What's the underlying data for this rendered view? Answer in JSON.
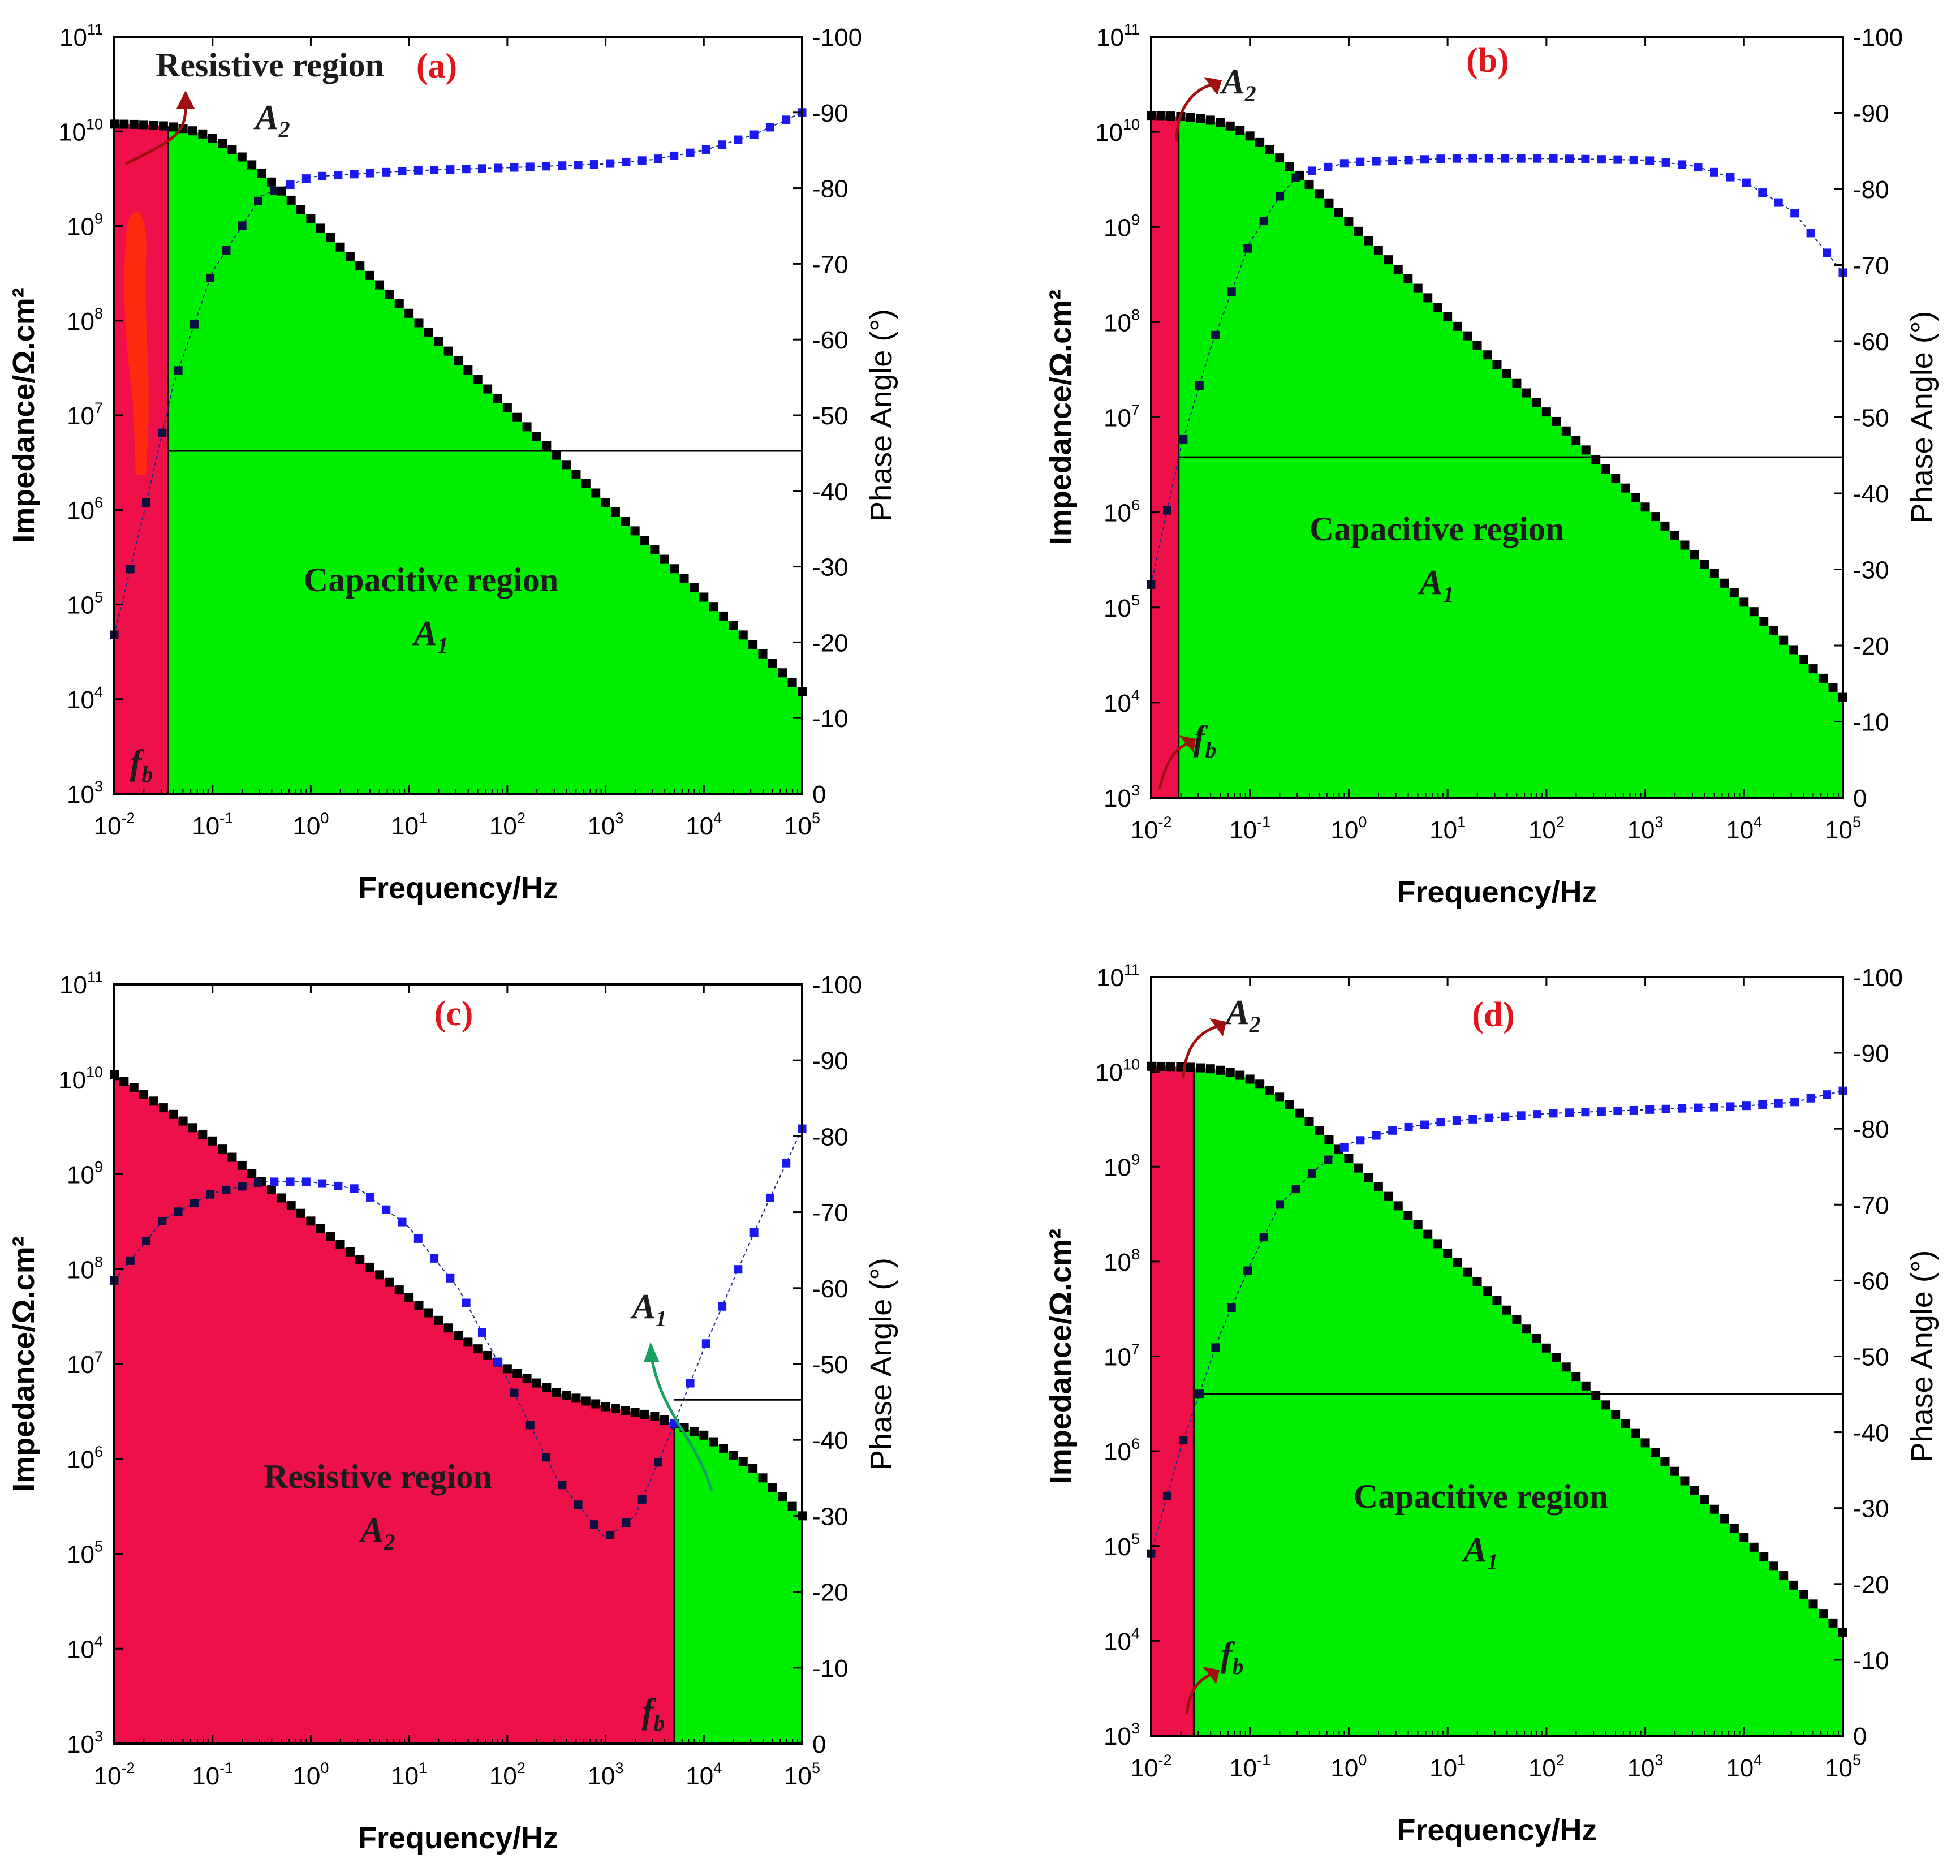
{
  "figure": {
    "x_axis_label": "Frequency/Hz",
    "y_axis_label": "Impedance/Ω.cm²",
    "y2_axis_label": "Phase Angle (°)"
  },
  "colors": {
    "capacitive": "#00ee00",
    "resistive": "#ee1048",
    "impedance_marker": "#000000",
    "phase_marker": "#1a1aee",
    "panel_label": "#e0161c",
    "arrow_red": "#a01010",
    "arrow_green": "#18a060"
  },
  "chart_data": [
    {
      "type": "scatter",
      "title": "(a)",
      "xlabel": "Frequency/Hz",
      "ylabel": "Impedance/Ω.cm²",
      "y2label": "Phase Angle (°)",
      "xscale": "log",
      "xlim": [
        0.01,
        100000
      ],
      "yscale": "log",
      "ylim": [
        1000,
        100000000000
      ],
      "y2lim": [
        0,
        -100
      ],
      "x_ticks": [
        "10",
        "10",
        "10",
        "10",
        "10",
        "10",
        "10",
        "10"
      ],
      "x_tick_exps": [
        "-2",
        "-1",
        "0",
        "1",
        "2",
        "3",
        "4",
        "5"
      ],
      "y_ticks": [
        "10",
        "10",
        "10",
        "10",
        "10",
        "10",
        "10",
        "10",
        "10"
      ],
      "y_tick_exps": [
        "3",
        "4",
        "5",
        "6",
        "7",
        "8",
        "9",
        "10",
        "11"
      ],
      "y2_ticks": [
        "0",
        "-10",
        "-20",
        "-30",
        "-40",
        "-50",
        "-60",
        "-70",
        "-80",
        "-90",
        "-100"
      ],
      "y2_tick_values": [
        0,
        -10,
        -20,
        -30,
        -40,
        -50,
        -60,
        -70,
        -80,
        -90,
        -100
      ],
      "fb_hz": 0.035,
      "horizontal_line_ohm": 4200000,
      "regions": [
        {
          "name": "Resistive region",
          "symbol": "A",
          "sub": "2",
          "fill": "resistive"
        },
        {
          "name": "Capacitive region",
          "symbol": "A",
          "sub": "1",
          "fill": "capacitive"
        }
      ],
      "fb_label": {
        "symbol": "f",
        "sub": "b"
      },
      "series": [
        {
          "name": "|Z|",
          "model": {
            "type": "rc",
            "r_ohm": 12000000000,
            "c_f": 1.33e-10
          }
        },
        {
          "name": "phase",
          "model": {
            "type": "curve",
            "points": [
              [
                -2,
                -21
              ],
              [
                -1.7,
                -37
              ],
              [
                -1.4,
                -54
              ],
              [
                -1,
                -69
              ],
              [
                -0.5,
                -79
              ],
              [
                0,
                -81.5
              ],
              [
                1,
                -82.3
              ],
              [
                2,
                -82.7
              ],
              [
                3,
                -83.2
              ],
              [
                3.5,
                -83.8
              ],
              [
                4,
                -85
              ],
              [
                4.5,
                -87
              ],
              [
                5,
                -90
              ]
            ]
          }
        }
      ]
    },
    {
      "type": "scatter",
      "title": "(b)",
      "xlabel": "Frequency/Hz",
      "ylabel": "Impedance/Ω.cm²",
      "y2label": "Phase Angle (°)",
      "xscale": "log",
      "xlim": [
        0.01,
        100000
      ],
      "yscale": "log",
      "ylim": [
        1000,
        100000000000
      ],
      "y2lim": [
        0,
        -100
      ],
      "x_ticks": [
        "10",
        "10",
        "10",
        "10",
        "10",
        "10",
        "10",
        "10"
      ],
      "x_tick_exps": [
        "-2",
        "-1",
        "0",
        "1",
        "2",
        "3",
        "4",
        "5"
      ],
      "y_ticks": [
        "10",
        "10",
        "10",
        "10",
        "10",
        "10",
        "10",
        "10",
        "10"
      ],
      "y_tick_exps": [
        "3",
        "4",
        "5",
        "6",
        "7",
        "8",
        "9",
        "10",
        "11"
      ],
      "y2_ticks": [
        "0",
        "-10",
        "-20",
        "-30",
        "-40",
        "-50",
        "-60",
        "-70",
        "-80",
        "-90",
        "-100"
      ],
      "y2_tick_values": [
        0,
        -10,
        -20,
        -30,
        -40,
        -50,
        -60,
        -70,
        -80,
        -90,
        -100
      ],
      "fb_hz": 0.019,
      "horizontal_line_ohm": 3800000,
      "regions": [
        {
          "name": "",
          "symbol": "A",
          "sub": "2",
          "fill": "resistive"
        },
        {
          "name": "Capacitive region",
          "symbol": "A",
          "sub": "1",
          "fill": "capacitive"
        }
      ],
      "fb_label": {
        "symbol": "f",
        "sub": "b"
      },
      "series": [
        {
          "name": "|Z|",
          "model": {
            "type": "rc",
            "r_ohm": 15000000000,
            "c_f": 1.4e-10
          }
        },
        {
          "name": "phase",
          "model": {
            "type": "curve",
            "points": [
              [
                -2,
                -28
              ],
              [
                -1.85,
                -37
              ],
              [
                -1.7,
                -46
              ],
              [
                -1.4,
                -59
              ],
              [
                -1,
                -73
              ],
              [
                -0.7,
                -79
              ],
              [
                -0.5,
                -82
              ],
              [
                0,
                -83.5
              ],
              [
                1,
                -84
              ],
              [
                2,
                -84
              ],
              [
                3,
                -83.8
              ],
              [
                3.5,
                -83
              ],
              [
                4,
                -81
              ],
              [
                4.5,
                -77
              ],
              [
                5,
                -69
              ]
            ]
          }
        }
      ]
    },
    {
      "type": "scatter",
      "title": "(c)",
      "xlabel": "Frequency/Hz",
      "ylabel": "Impedance/Ω.cm²",
      "y2label": "Phase Angle (°)",
      "xscale": "log",
      "xlim": [
        0.01,
        100000
      ],
      "yscale": "log",
      "ylim": [
        1000,
        100000000000
      ],
      "y2lim": [
        0,
        -100
      ],
      "x_ticks": [
        "10",
        "10",
        "10",
        "10",
        "10",
        "10",
        "10",
        "10"
      ],
      "x_tick_exps": [
        "-2",
        "-1",
        "0",
        "1",
        "2",
        "3",
        "4",
        "5"
      ],
      "y_ticks": [
        "10",
        "10",
        "10",
        "10",
        "10",
        "10",
        "10",
        "10",
        "10"
      ],
      "y_tick_exps": [
        "3",
        "4",
        "5",
        "6",
        "7",
        "8",
        "9",
        "10",
        "11"
      ],
      "y2_ticks": [
        "0",
        "-10",
        "-20",
        "-30",
        "-40",
        "-50",
        "-60",
        "-70",
        "-80",
        "-90",
        "-100"
      ],
      "y2_tick_values": [
        0,
        -10,
        -20,
        -30,
        -40,
        -50,
        -60,
        -70,
        -80,
        -90,
        -100
      ],
      "fb_hz": 5000,
      "horizontal_line_ohm": 4200000,
      "regions": [
        {
          "name": "Resistive region",
          "symbol": "A",
          "sub": "2",
          "fill": "resistive"
        },
        {
          "name": "",
          "symbol": "A",
          "sub": "1",
          "fill": "capacitive"
        }
      ],
      "fb_label": {
        "symbol": "f",
        "sub": "b"
      },
      "series": [
        {
          "name": "|Z|",
          "model": {
            "type": "curve",
            "points": [
              [
                -2,
                10.05
              ],
              [
                -1,
                9.35
              ],
              [
                -0.3,
                8.75
              ],
              [
                0.5,
                8.1
              ],
              [
                1,
                7.7
              ],
              [
                1.5,
                7.3
              ],
              [
                2,
                6.95
              ],
              [
                2.5,
                6.7
              ],
              [
                3,
                6.55
              ],
              [
                3.5,
                6.45
              ],
              [
                4,
                6.25
              ],
              [
                4.5,
                5.9
              ],
              [
                5,
                5.4
              ]
            ]
          }
        },
        {
          "name": "phase",
          "model": {
            "type": "curve",
            "points": [
              [
                -2,
                -61
              ],
              [
                -1.5,
                -69
              ],
              [
                -1,
                -72.5
              ],
              [
                -0.5,
                -74
              ],
              [
                0,
                -74
              ],
              [
                0.5,
                -73
              ],
              [
                1,
                -68
              ],
              [
                1.5,
                -60
              ],
              [
                2,
                -48
              ],
              [
                2.5,
                -35
              ],
              [
                3,
                -27
              ],
              [
                3.3,
                -30
              ],
              [
                3.6,
                -39
              ],
              [
                4,
                -52
              ],
              [
                4.5,
                -67
              ],
              [
                5,
                -81
              ]
            ]
          }
        }
      ]
    },
    {
      "type": "scatter",
      "title": "(d)",
      "xlabel": "Frequency/Hz",
      "ylabel": "Impedance/Ω.cm²",
      "y2label": "Phase Angle (°)",
      "xscale": "log",
      "xlim": [
        0.01,
        100000
      ],
      "yscale": "log",
      "ylim": [
        1000,
        100000000000
      ],
      "y2lim": [
        0,
        -100
      ],
      "x_ticks": [
        "10",
        "10",
        "10",
        "10",
        "10",
        "10",
        "10",
        "10"
      ],
      "x_tick_exps": [
        "-2",
        "-1",
        "0",
        "1",
        "2",
        "3",
        "4",
        "5"
      ],
      "y_ticks": [
        "10",
        "10",
        "10",
        "10",
        "10",
        "10",
        "10",
        "10",
        "10"
      ],
      "y_tick_exps": [
        "3",
        "4",
        "5",
        "6",
        "7",
        "8",
        "9",
        "10",
        "11"
      ],
      "y2_ticks": [
        "0",
        "-10",
        "-20",
        "-30",
        "-40",
        "-50",
        "-60",
        "-70",
        "-80",
        "-90",
        "-100"
      ],
      "y2_tick_values": [
        0,
        -10,
        -20,
        -30,
        -40,
        -50,
        -60,
        -70,
        -80,
        -90,
        -100
      ],
      "fb_hz": 0.027,
      "horizontal_line_ohm": 4000000,
      "regions": [
        {
          "name": "",
          "symbol": "A",
          "sub": "2",
          "fill": "resistive"
        },
        {
          "name": "Capacitive region",
          "symbol": "A",
          "sub": "1",
          "fill": "capacitive"
        }
      ],
      "fb_label": {
        "symbol": "f",
        "sub": "b"
      },
      "series": [
        {
          "name": "|Z|",
          "model": {
            "type": "rc",
            "r_ohm": 11500000000,
            "c_f": 1.3e-10
          }
        },
        {
          "name": "phase",
          "model": {
            "type": "curve",
            "points": [
              [
                -2,
                -24
              ],
              [
                -1.7,
                -38
              ],
              [
                -1.3,
                -53
              ],
              [
                -1,
                -62
              ],
              [
                -0.7,
                -70
              ],
              [
                -0.3,
                -75
              ],
              [
                0,
                -78
              ],
              [
                0.5,
                -80
              ],
              [
                1,
                -81
              ],
              [
                2,
                -82
              ],
              [
                3,
                -82.5
              ],
              [
                4,
                -83
              ],
              [
                4.5,
                -83.5
              ],
              [
                5,
                -85
              ]
            ]
          }
        }
      ]
    }
  ]
}
